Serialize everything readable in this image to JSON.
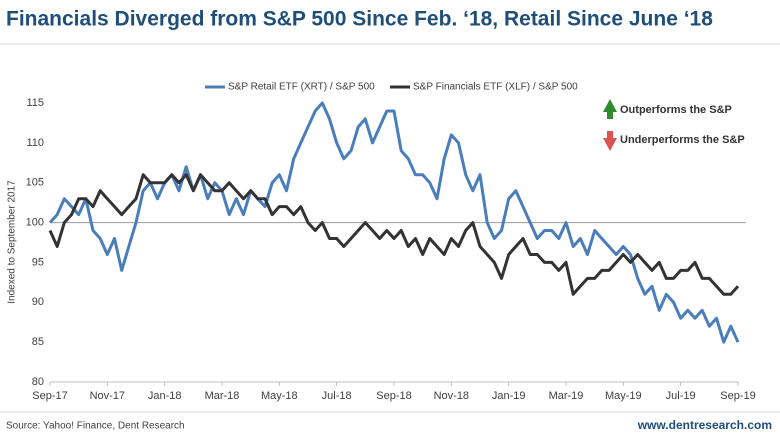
{
  "chart_data": {
    "type": "line",
    "title": "Financials Diverged from S&P 500 Since Feb. ‘18, Retail Since June ‘18",
    "y_label": "Indexed to September 2017",
    "annotations": [
      "Outperforms the S&P",
      "Underperforms the S&P"
    ],
    "source": "Source: Yahoo! Finance, Dent Research",
    "website": "www.dentresearch.com",
    "ylim": [
      80,
      115
    ],
    "yticks": [
      80,
      85,
      90,
      95,
      100,
      105,
      110,
      115
    ],
    "reference_line": 100,
    "categories": [
      "Sep-17",
      null,
      null,
      null,
      null,
      null,
      null,
      null,
      "Nov-17",
      null,
      null,
      null,
      null,
      null,
      null,
      null,
      "Jan-18",
      null,
      null,
      null,
      null,
      null,
      null,
      null,
      "Mar-18",
      null,
      null,
      null,
      null,
      null,
      null,
      null,
      "May-18",
      null,
      null,
      null,
      null,
      null,
      null,
      null,
      "Jul-18",
      null,
      null,
      null,
      null,
      null,
      null,
      null,
      "Sep-18",
      null,
      null,
      null,
      null,
      null,
      null,
      null,
      "Nov-18",
      null,
      null,
      null,
      null,
      null,
      null,
      null,
      "Jan-19",
      null,
      null,
      null,
      null,
      null,
      null,
      null,
      "Mar-19",
      null,
      null,
      null,
      null,
      null,
      null,
      null,
      "May-19",
      null,
      null,
      null,
      null,
      null,
      null,
      null,
      "Jul-19",
      null,
      null,
      null,
      null,
      null,
      null,
      null,
      "Sep-19"
    ],
    "series": [
      {
        "name": "S&P Retail ETF (XRT) / S&P 500",
        "color": "#4a7ebb",
        "values": [
          100,
          101,
          103,
          102,
          101,
          103,
          99,
          98,
          96,
          98,
          94,
          97,
          100,
          104,
          105,
          103,
          105,
          106,
          104,
          107,
          104,
          106,
          103,
          105,
          104,
          101,
          103,
          101,
          104,
          103,
          102,
          105,
          106,
          104,
          108,
          110,
          112,
          114,
          115,
          113,
          110,
          108,
          109,
          112,
          113,
          110,
          112,
          114,
          114,
          109,
          108,
          106,
          106,
          105,
          103,
          108,
          111,
          110,
          106,
          104,
          106,
          100,
          98,
          99,
          103,
          104,
          102,
          100,
          98,
          99,
          99,
          98,
          100,
          97,
          98,
          96,
          99,
          98,
          97,
          96,
          97,
          96,
          93,
          91,
          92,
          89,
          91,
          90,
          88,
          89,
          88,
          89,
          87,
          88,
          85,
          87,
          85
        ]
      },
      {
        "name": "S&P Financials ETF (XLF) / S&P 500",
        "color": "#333333",
        "values": [
          99,
          97,
          100,
          101,
          103,
          103,
          102,
          104,
          103,
          102,
          101,
          102,
          103,
          106,
          105,
          105,
          105,
          106,
          105,
          106,
          104,
          106,
          105,
          104,
          104,
          105,
          104,
          103,
          104,
          103,
          103,
          101,
          102,
          102,
          101,
          102,
          100,
          99,
          100,
          98,
          98,
          97,
          98,
          99,
          100,
          99,
          98,
          99,
          98,
          99,
          97,
          98,
          96,
          98,
          97,
          96,
          98,
          97,
          99,
          100,
          97,
          96,
          95,
          93,
          96,
          97,
          98,
          96,
          96,
          95,
          95,
          94,
          95,
          91,
          92,
          93,
          93,
          94,
          94,
          95,
          96,
          95,
          96,
          95,
          94,
          95,
          93,
          93,
          94,
          94,
          95,
          93,
          93,
          92,
          91,
          91,
          92
        ]
      }
    ]
  }
}
